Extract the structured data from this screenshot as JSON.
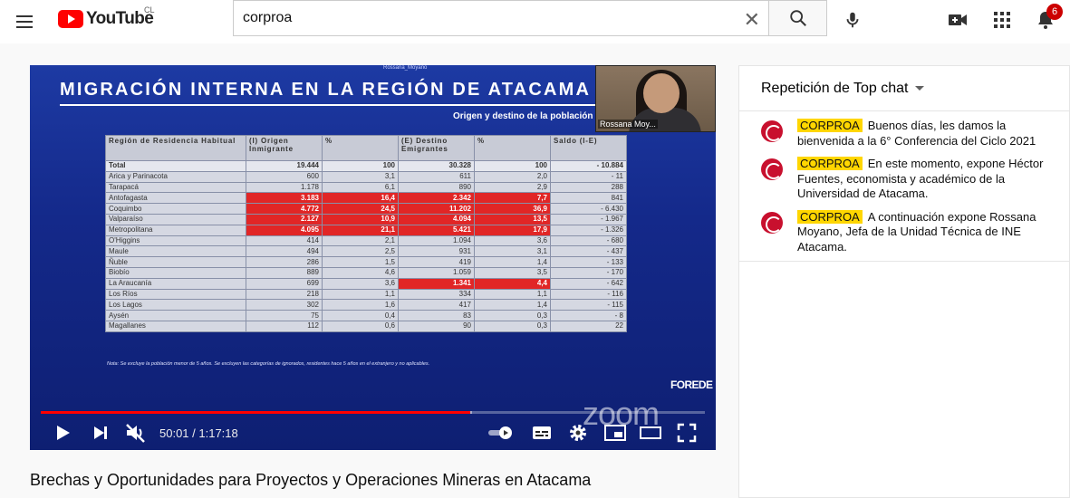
{
  "header": {
    "logo_text": "YouTube",
    "country_code": "CL",
    "search_value": "corproa",
    "notification_count": "6"
  },
  "slide": {
    "presenter_tag": "Rossana_Moyano",
    "title": "MIGRACIÓN INTERNA EN LA REGIÓN DE ATACAMA",
    "subtitle": "Origen y destino de la población",
    "headers": [
      "Región de Residencia Habitual",
      "(I) Origen Inmigrante",
      "%",
      "(E) Destino Emigrantes",
      "%",
      "Saldo (I-E)"
    ],
    "rows": [
      {
        "region": "Total",
        "origen": "19.444",
        "pct_o": "100",
        "destino": "30.328",
        "pct_e": "100",
        "saldo": "- 10.884",
        "hi_o": false,
        "hi_e": false
      },
      {
        "region": "Arica y Parinacota",
        "origen": "600",
        "pct_o": "3,1",
        "destino": "611",
        "pct_e": "2,0",
        "saldo": "- 11",
        "hi_o": false,
        "hi_e": false
      },
      {
        "region": "Tarapacá",
        "origen": "1.178",
        "pct_o": "6,1",
        "destino": "890",
        "pct_e": "2,9",
        "saldo": "288",
        "hi_o": false,
        "hi_e": false
      },
      {
        "region": "Antofagasta",
        "origen": "3.183",
        "pct_o": "16,4",
        "destino": "2.342",
        "pct_e": "7,7",
        "saldo": "841",
        "hi_o": true,
        "hi_e": true
      },
      {
        "region": "Coquimbo",
        "origen": "4.772",
        "pct_o": "24,5",
        "destino": "11.202",
        "pct_e": "36,9",
        "saldo": "- 6.430",
        "hi_o": true,
        "hi_e": true
      },
      {
        "region": "Valparaíso",
        "origen": "2.127",
        "pct_o": "10,9",
        "destino": "4.094",
        "pct_e": "13,5",
        "saldo": "- 1.967",
        "hi_o": true,
        "hi_e": true
      },
      {
        "region": "Metropolitana",
        "origen": "4.095",
        "pct_o": "21,1",
        "destino": "5.421",
        "pct_e": "17,9",
        "saldo": "- 1.326",
        "hi_o": true,
        "hi_e": true
      },
      {
        "region": "O'Higgins",
        "origen": "414",
        "pct_o": "2,1",
        "destino": "1.094",
        "pct_e": "3,6",
        "saldo": "- 680",
        "hi_o": false,
        "hi_e": false
      },
      {
        "region": "Maule",
        "origen": "494",
        "pct_o": "2,5",
        "destino": "931",
        "pct_e": "3,1",
        "saldo": "- 437",
        "hi_o": false,
        "hi_e": false
      },
      {
        "region": "Ñuble",
        "origen": "286",
        "pct_o": "1,5",
        "destino": "419",
        "pct_e": "1,4",
        "saldo": "- 133",
        "hi_o": false,
        "hi_e": false
      },
      {
        "region": "Biobío",
        "origen": "889",
        "pct_o": "4,6",
        "destino": "1.059",
        "pct_e": "3,5",
        "saldo": "- 170",
        "hi_o": false,
        "hi_e": false
      },
      {
        "region": "La Araucanía",
        "origen": "699",
        "pct_o": "3,6",
        "destino": "1.341",
        "pct_e": "4,4",
        "saldo": "- 642",
        "hi_o": false,
        "hi_e": true
      },
      {
        "region": "Los Ríos",
        "origen": "218",
        "pct_o": "1,1",
        "destino": "334",
        "pct_e": "1,1",
        "saldo": "- 116",
        "hi_o": false,
        "hi_e": false
      },
      {
        "region": "Los Lagos",
        "origen": "302",
        "pct_o": "1,6",
        "destino": "417",
        "pct_e": "1,4",
        "saldo": "- 115",
        "hi_o": false,
        "hi_e": false
      },
      {
        "region": "Aysén",
        "origen": "75",
        "pct_o": "0,4",
        "destino": "83",
        "pct_e": "0,3",
        "saldo": "- 8",
        "hi_o": false,
        "hi_e": false
      },
      {
        "region": "Magallanes",
        "origen": "112",
        "pct_o": "0,6",
        "destino": "90",
        "pct_e": "0,3",
        "saldo": "22",
        "hi_o": false,
        "hi_e": false
      }
    ],
    "note": "Nota: Se excluye la población menor de 5 años. Se excluyen las categorías de ignorados, residentes hace 5 años en el extranjero y no aplicables.",
    "org_mark": "FOREDE",
    "zoom_mark": "zoom",
    "camera_name": "Rossana Moy..."
  },
  "player": {
    "time_display": "50:01 / 1:17:18",
    "progress_fraction": 0.647,
    "buffered_fraction": 0.65
  },
  "video": {
    "title": "Brechas y Oportunidades para Proyectos y Operaciones Mineras en Atacama"
  },
  "chat": {
    "header": "Repetición de Top chat",
    "messages": [
      {
        "author": "CORPROA",
        "text": "Buenos días, les damos la bienvenida a la 6° Conferencia del Ciclo 2021"
      },
      {
        "author": "CORPROA",
        "text": "En este momento, expone Héctor Fuentes, economista y académico de la Universidad de Atacama."
      },
      {
        "author": "CORPROA",
        "text": "A continuación expone Rossana Moyano, Jefa de la Unidad Técnica de INE Atacama."
      }
    ]
  },
  "colors": {
    "brand_red": "#ff0000",
    "slide_blue": "#14298a",
    "highlight_red": "#e12626",
    "author_highlight": "#ffd600"
  }
}
